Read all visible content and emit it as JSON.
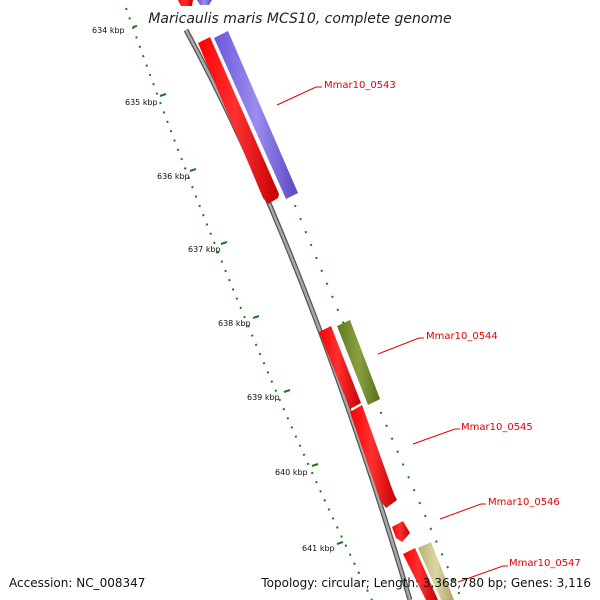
{
  "title": "Maricaulis maris MCS10, complete genome",
  "accession": "Accession: NC_008347",
  "summary": "Topology: circular; Length: 3,368,780 bp; Genes: 3,116",
  "scale_labels": [
    "634 kbp",
    "635 kbp",
    "636 kbp",
    "637 kbp",
    "638 kbp",
    "639 kbp",
    "640 kbp",
    "641 kbp"
  ],
  "gene_labels": [
    "Mmar10_0543",
    "Mmar10_0544",
    "Mmar10_0545",
    "Mmar10_0546",
    "Mmar10_0547"
  ],
  "colors": {
    "forward_gene": "#ff0000",
    "backbone": "#8c8c8c",
    "tick": "#1a7a1a",
    "cog_purple": "#7b6be0",
    "cog_green": "#6f8a2a",
    "cog_khaki": "#c8c08a",
    "label": "#e00000"
  }
}
